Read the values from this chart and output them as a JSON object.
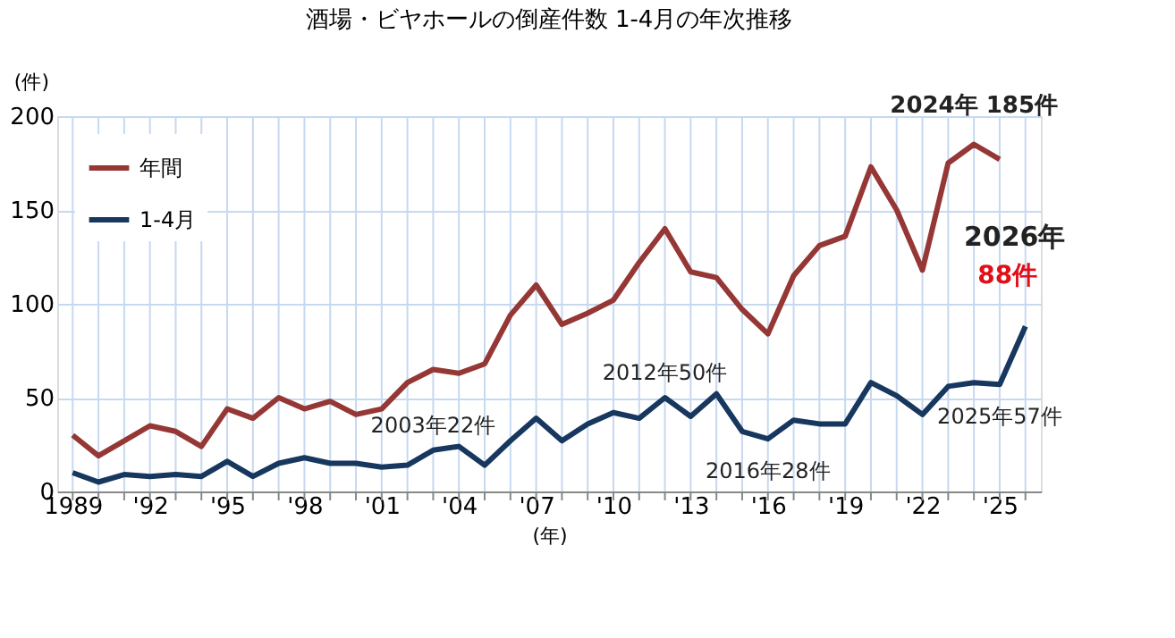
{
  "chart_data": {
    "type": "line",
    "title": "酒場・ビヤホールの倒産件数 1-4月の年次推移",
    "xlabel": "(年)",
    "ylabel": "(件)",
    "series": [
      {
        "name": "年間",
        "color": "#953735",
        "x": [
          1989,
          1990,
          1991,
          1992,
          1993,
          1994,
          1995,
          1996,
          1997,
          1998,
          1999,
          2000,
          2001,
          2002,
          2003,
          2004,
          2005,
          2006,
          2007,
          2008,
          2009,
          2010,
          2011,
          2012,
          2013,
          2014,
          2015,
          2016,
          2017,
          2018,
          2019,
          2020,
          2021,
          2022,
          2023,
          2024,
          2025
        ],
        "values": [
          30,
          19,
          27,
          35,
          32,
          24,
          44,
          39,
          50,
          44,
          48,
          41,
          44,
          58,
          65,
          63,
          68,
          94,
          110,
          89,
          95,
          102,
          122,
          140,
          117,
          114,
          97,
          84,
          115,
          131,
          136,
          173,
          150,
          118,
          175,
          185,
          177
        ]
      },
      {
        "name": "1-4月",
        "color": "#17375e",
        "x": [
          1989,
          1990,
          1991,
          1992,
          1993,
          1994,
          1995,
          1996,
          1997,
          1998,
          1999,
          2000,
          2001,
          2002,
          2003,
          2004,
          2005,
          2006,
          2007,
          2008,
          2009,
          2010,
          2011,
          2012,
          2013,
          2014,
          2015,
          2016,
          2017,
          2018,
          2019,
          2020,
          2021,
          2022,
          2023,
          2024,
          2025,
          2026
        ],
        "values": [
          10,
          5,
          9,
          8,
          9,
          8,
          16,
          8,
          15,
          18,
          15,
          15,
          13,
          14,
          22,
          24,
          14,
          27,
          39,
          27,
          36,
          42,
          39,
          50,
          40,
          52,
          32,
          28,
          38,
          36,
          36,
          58,
          51,
          41,
          56,
          58,
          57,
          88
        ]
      }
    ],
    "xlim": [
      1988.4,
      2026.6
    ],
    "xticks": [
      1989,
      {
        "value": 1990,
        "label": null
      },
      {
        "value": 1991,
        "label": null
      },
      {
        "value": 1992,
        "label": "'92"
      },
      {
        "value": 1993,
        "label": null
      },
      {
        "value": 1994,
        "label": null
      },
      {
        "value": 1995,
        "label": "'95"
      },
      {
        "value": 1996,
        "label": null
      },
      {
        "value": 1997,
        "label": null
      },
      {
        "value": 1998,
        "label": "'98"
      },
      {
        "value": 1999,
        "label": null
      },
      {
        "value": 2000,
        "label": null
      },
      {
        "value": 2001,
        "label": "'01"
      },
      {
        "value": 2002,
        "label": null
      },
      {
        "value": 2003,
        "label": null
      },
      {
        "value": 2004,
        "label": "'04"
      },
      {
        "value": 2005,
        "label": null
      },
      {
        "value": 2006,
        "label": null
      },
      {
        "value": 2007,
        "label": "'07"
      },
      {
        "value": 2008,
        "label": null
      },
      {
        "value": 2009,
        "label": null
      },
      {
        "value": 2010,
        "label": "'10"
      },
      {
        "value": 2011,
        "label": null
      },
      {
        "value": 2012,
        "label": null
      },
      {
        "value": 2013,
        "label": "'13"
      },
      {
        "value": 2014,
        "label": null
      },
      {
        "value": 2015,
        "label": null
      },
      {
        "value": 2016,
        "label": "'16"
      },
      {
        "value": 2017,
        "label": null
      },
      {
        "value": 2018,
        "label": null
      },
      {
        "value": 2019,
        "label": "'19"
      },
      {
        "value": 2020,
        "label": null
      },
      {
        "value": 2021,
        "label": null
      },
      {
        "value": 2022,
        "label": "'22"
      },
      {
        "value": 2023,
        "label": null
      },
      {
        "value": 2024,
        "label": null
      },
      {
        "value": 2025,
        "label": "'25"
      },
      {
        "value": 2026,
        "label": null
      }
    ],
    "ylim": [
      0,
      200
    ],
    "yticks": [
      0,
      50,
      100,
      150,
      200
    ],
    "grid": true,
    "legend": "top left",
    "marker": "none",
    "line_style": "solid",
    "annotations": [
      {
        "text": "2024年 185件",
        "x": 2024,
        "y": 185
      },
      {
        "text": "2026年",
        "x": 2026,
        "y": 88
      },
      {
        "text": "88件",
        "x": 2026,
        "y": 88
      },
      {
        "text": "2003年22件",
        "x": 2003,
        "y": 22
      },
      {
        "text": "2012年50件",
        "x": 2012,
        "y": 50
      },
      {
        "text": "2016年28件",
        "x": 2016,
        "y": 28
      },
      {
        "text": "2025年57件",
        "x": 2025,
        "y": 57
      }
    ]
  }
}
